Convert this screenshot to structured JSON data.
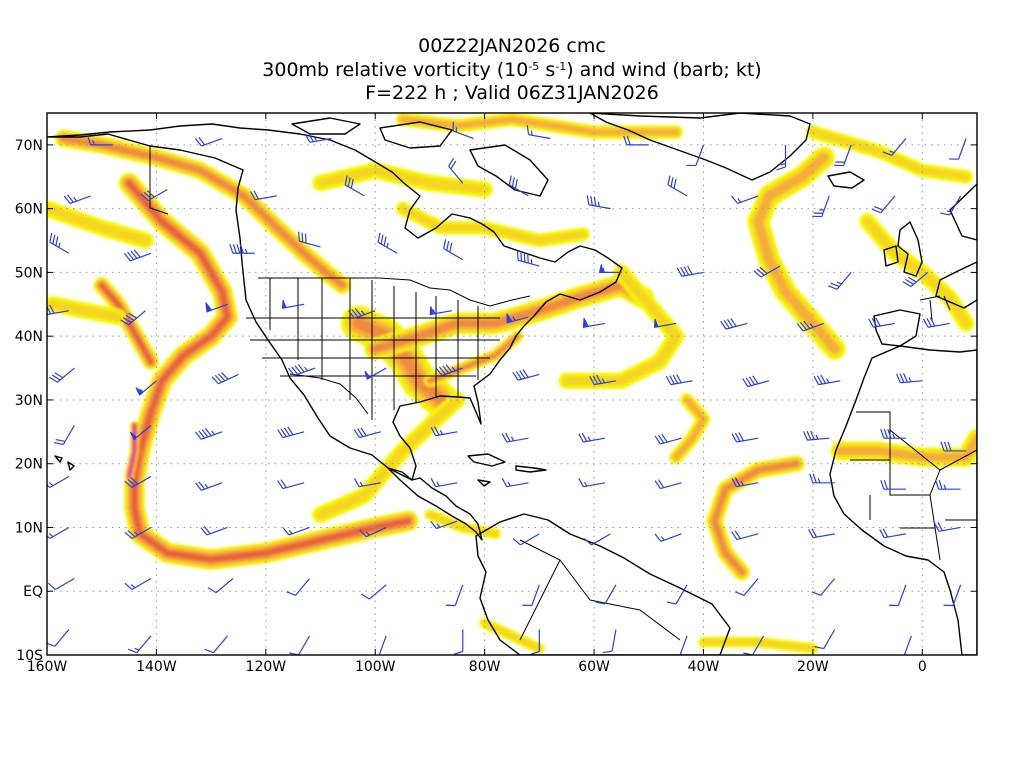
{
  "title": {
    "line1": "00Z22JAN2026 cmc",
    "line2_prefix": "300mb relative vorticity (10",
    "line2_exp1": "-5",
    "line2_mid": " s",
    "line2_exp2": "-1",
    "line2_suffix": ") and wind (barb; kt)",
    "line3": "F=222 h ; Valid 06Z31JAN2026"
  },
  "map": {
    "lon_range": [
      -160,
      10
    ],
    "lat_range": [
      -10,
      75
    ],
    "x_ticks": [
      {
        "lon": -160,
        "label": "160W"
      },
      {
        "lon": -140,
        "label": "140W"
      },
      {
        "lon": -120,
        "label": "120W"
      },
      {
        "lon": -100,
        "label": "100W"
      },
      {
        "lon": -80,
        "label": "80W"
      },
      {
        "lon": -60,
        "label": "60W"
      },
      {
        "lon": -40,
        "label": "40W"
      },
      {
        "lon": -20,
        "label": "20W"
      },
      {
        "lon": 0,
        "label": "0"
      }
    ],
    "y_ticks": [
      {
        "lat": 70,
        "label": "70N"
      },
      {
        "lat": 60,
        "label": "60N"
      },
      {
        "lat": 50,
        "label": "50N"
      },
      {
        "lat": 40,
        "label": "40N"
      },
      {
        "lat": 30,
        "label": "30N"
      },
      {
        "lat": 20,
        "label": "20N"
      },
      {
        "lat": 10,
        "label": "10N"
      },
      {
        "lat": 0,
        "label": "EQ"
      },
      {
        "lat": -10,
        "label": "10S"
      }
    ],
    "gridlines": "dotted",
    "vorticity_colors": [
      "#f5f500",
      "#f5d520",
      "#f5ac3a",
      "#f08a40",
      "#e8603a",
      "#d83a55",
      "#e040c8"
    ],
    "barb_color": "#2a3fe0"
  },
  "vorticity_features": [
    {
      "name": "alaska-arc",
      "pts": [
        [
          -157,
          71
        ],
        [
          -150,
          70
        ],
        [
          -140,
          68
        ],
        [
          -132,
          66
        ],
        [
          -124,
          62
        ],
        [
          -118,
          57
        ],
        [
          -113,
          53
        ],
        [
          -109,
          50
        ],
        [
          -106,
          48
        ]
      ],
      "w": 3.2,
      "max": 3
    },
    {
      "name": "west-coast-trough",
      "pts": [
        [
          -145,
          64
        ],
        [
          -139,
          58
        ],
        [
          -132,
          53
        ],
        [
          -128,
          47
        ],
        [
          -127,
          43
        ],
        [
          -130,
          40
        ],
        [
          -135,
          37
        ],
        [
          -139,
          33
        ],
        [
          -141,
          28
        ],
        [
          -143,
          22
        ],
        [
          -144,
          17
        ],
        [
          -144,
          13
        ],
        [
          -143,
          9
        ],
        [
          -138,
          6
        ],
        [
          -130,
          5
        ],
        [
          -120,
          6
        ],
        [
          -110,
          8
        ],
        [
          -100,
          10
        ],
        [
          -94,
          11
        ]
      ],
      "w": 3.8,
      "max": 4
    },
    {
      "name": "pacific-low",
      "pts": [
        [
          -150,
          48
        ],
        [
          -147,
          45
        ],
        [
          -145,
          42
        ],
        [
          -143,
          39
        ],
        [
          -141,
          36
        ]
      ],
      "w": 3.0,
      "max": 4
    },
    {
      "name": "pacific-max",
      "pts": [
        [
          -144,
          26
        ],
        [
          -144,
          22
        ],
        [
          -145,
          18
        ]
      ],
      "w": 1.6,
      "max": 6
    },
    {
      "name": "pacific-west",
      "pts": [
        [
          -159,
          45
        ],
        [
          -153,
          44
        ],
        [
          -147,
          43
        ]
      ],
      "w": 3,
      "max": 1
    },
    {
      "name": "aleutian",
      "pts": [
        [
          -160,
          60
        ],
        [
          -150,
          57
        ],
        [
          -142,
          55
        ]
      ],
      "w": 3,
      "max": 1
    },
    {
      "name": "central-us",
      "pts": [
        [
          -103,
          42
        ],
        [
          -98,
          40
        ],
        [
          -94,
          36
        ],
        [
          -92,
          33
        ],
        [
          -88,
          30
        ]
      ],
      "w": 6.5,
      "max": 3
    },
    {
      "name": "ohio-valley",
      "pts": [
        [
          -100,
          38
        ],
        [
          -92,
          40
        ],
        [
          -85,
          42
        ],
        [
          -78,
          42
        ],
        [
          -70,
          44
        ],
        [
          -63,
          46
        ],
        [
          -55,
          48
        ],
        [
          -51,
          46
        ]
      ],
      "w": 4,
      "max": 3
    },
    {
      "name": "east-coast",
      "pts": [
        [
          -90,
          33
        ],
        [
          -84,
          35
        ],
        [
          -78,
          37
        ],
        [
          -74,
          40
        ]
      ],
      "w": 2.2,
      "max": 3
    },
    {
      "name": "atlantic-front",
      "pts": [
        [
          -55,
          50
        ],
        [
          -50,
          45
        ],
        [
          -45,
          40
        ],
        [
          -48,
          36
        ],
        [
          -55,
          33
        ],
        [
          -65,
          33
        ]
      ],
      "w": 3,
      "max": 1
    },
    {
      "name": "gulf-mexico",
      "pts": [
        [
          -110,
          12
        ],
        [
          -102,
          15
        ],
        [
          -95,
          22
        ],
        [
          -90,
          26
        ],
        [
          -85,
          30
        ]
      ],
      "w": 3,
      "max": 1
    },
    {
      "name": "hudson",
      "pts": [
        [
          -95,
          60
        ],
        [
          -88,
          57
        ],
        [
          -80,
          57
        ],
        [
          -70,
          55
        ],
        [
          -62,
          56
        ]
      ],
      "w": 2.5,
      "max": 1
    },
    {
      "name": "canada-arctic",
      "pts": [
        [
          -110,
          64
        ],
        [
          -100,
          66
        ],
        [
          -90,
          64
        ],
        [
          -80,
          63
        ]
      ],
      "w": 3,
      "max": 1
    },
    {
      "name": "arctic-top",
      "pts": [
        [
          -95,
          74
        ],
        [
          -85,
          73
        ],
        [
          -75,
          74
        ],
        [
          -60,
          72
        ],
        [
          -45,
          72
        ]
      ],
      "w": 2.5,
      "max": 2
    },
    {
      "name": "greenland-east",
      "pts": [
        [
          -18,
          68
        ],
        [
          -22,
          65
        ],
        [
          -28,
          62
        ],
        [
          -30,
          58
        ],
        [
          -28,
          52
        ],
        [
          -25,
          47
        ],
        [
          -22,
          44
        ],
        [
          -20,
          42
        ],
        [
          -16,
          38
        ]
      ],
      "w": 4,
      "max": 2
    },
    {
      "name": "north-atlantic-east",
      "pts": [
        [
          -10,
          58
        ],
        [
          -5,
          53
        ],
        [
          0,
          50
        ],
        [
          5,
          46
        ],
        [
          8,
          42
        ]
      ],
      "w": 3,
      "max": 1
    },
    {
      "name": "norway",
      "pts": [
        [
          -20,
          72
        ],
        [
          -8,
          69
        ],
        [
          0,
          66
        ],
        [
          8,
          65
        ]
      ],
      "w": 2.5,
      "max": 1
    },
    {
      "name": "mid-atlantic-south",
      "pts": [
        [
          -43,
          30
        ],
        [
          -40,
          27
        ],
        [
          -42,
          24
        ],
        [
          -45,
          21
        ]
      ],
      "w": 2.5,
      "max": 2
    },
    {
      "name": "tropical-hook",
      "pts": [
        [
          -23,
          20
        ],
        [
          -30,
          19
        ],
        [
          -36,
          16
        ],
        [
          -38,
          11
        ],
        [
          -36,
          6
        ],
        [
          -33,
          3
        ]
      ],
      "w": 3,
      "max": 3
    },
    {
      "name": "africa",
      "pts": [
        [
          -15,
          22
        ],
        [
          -8,
          22
        ],
        [
          0,
          21
        ],
        [
          8,
          21
        ],
        [
          10,
          24
        ]
      ],
      "w": 3.5,
      "max": 2
    },
    {
      "name": "caribbean",
      "pts": [
        [
          -90,
          12
        ],
        [
          -84,
          10
        ],
        [
          -78,
          9
        ]
      ],
      "w": 2,
      "max": 1
    },
    {
      "name": "south-america",
      "pts": [
        [
          -80,
          -5
        ],
        [
          -75,
          -7
        ],
        [
          -70,
          -9
        ]
      ],
      "w": 2,
      "max": 1
    },
    {
      "name": "south-atlantic",
      "pts": [
        [
          -40,
          -8
        ],
        [
          -30,
          -8
        ],
        [
          -20,
          -9
        ]
      ],
      "w": 2,
      "max": 1
    }
  ],
  "barbs": [
    [
      -148,
      70,
      270,
      15
    ],
    [
      -128,
      71,
      250,
      20
    ],
    [
      -108,
      71,
      260,
      25
    ],
    [
      -82,
      71,
      290,
      15
    ],
    [
      -68,
      71,
      280,
      15
    ],
    [
      -50,
      70,
      270,
      20
    ],
    [
      -40,
      70,
      200,
      10
    ],
    [
      -25,
      70,
      180,
      15
    ],
    [
      -13,
      70,
      200,
      20
    ],
    [
      -3,
      71,
      220,
      15
    ],
    [
      8,
      71,
      200,
      10
    ],
    [
      -152,
      62,
      250,
      25
    ],
    [
      -138,
      63,
      240,
      30
    ],
    [
      -118,
      62,
      260,
      20
    ],
    [
      -102,
      62,
      300,
      30
    ],
    [
      -84,
      64,
      320,
      20
    ],
    [
      -72,
      62,
      300,
      30
    ],
    [
      -57,
      60,
      280,
      35
    ],
    [
      -43,
      62,
      300,
      30
    ],
    [
      -30,
      62,
      250,
      15
    ],
    [
      -17,
      62,
      200,
      25
    ],
    [
      -5,
      62,
      220,
      20
    ],
    [
      7,
      62,
      210,
      15
    ],
    [
      -156,
      53,
      300,
      35
    ],
    [
      -141,
      53,
      250,
      40
    ],
    [
      -122,
      53,
      270,
      45
    ],
    [
      -110,
      54,
      285,
      30
    ],
    [
      -96,
      53,
      300,
      35
    ],
    [
      -84,
      52,
      300,
      30
    ],
    [
      -70,
      51,
      285,
      45
    ],
    [
      -55,
      50,
      270,
      55
    ],
    [
      -40,
      50,
      260,
      40
    ],
    [
      -26,
      51,
      240,
      30
    ],
    [
      -13,
      50,
      220,
      25
    ],
    [
      1,
      50,
      230,
      30
    ],
    [
      -156,
      44,
      260,
      30
    ],
    [
      -142,
      44,
      230,
      40
    ],
    [
      -127,
      45,
      250,
      60
    ],
    [
      -113,
      45,
      260,
      50
    ],
    [
      -100,
      44,
      250,
      35
    ],
    [
      -86,
      44,
      260,
      55
    ],
    [
      -72,
      43,
      255,
      65
    ],
    [
      -58,
      42,
      260,
      60
    ],
    [
      -45,
      42,
      260,
      50
    ],
    [
      -32,
      42,
      255,
      40
    ],
    [
      -18,
      42,
      250,
      35
    ],
    [
      -5,
      42,
      260,
      30
    ],
    [
      5,
      42,
      260,
      30
    ],
    [
      -155,
      35,
      230,
      30
    ],
    [
      -140,
      33,
      230,
      55
    ],
    [
      -125,
      34,
      245,
      40
    ],
    [
      -111,
      35,
      250,
      45
    ],
    [
      -98,
      35,
      240,
      50
    ],
    [
      -84,
      35,
      250,
      45
    ],
    [
      -70,
      34,
      255,
      40
    ],
    [
      -56,
      33,
      260,
      35
    ],
    [
      -42,
      33,
      260,
      40
    ],
    [
      -28,
      33,
      255,
      40
    ],
    [
      -15,
      33,
      260,
      35
    ],
    [
      0,
      33,
      265,
      35
    ],
    [
      -155,
      26,
      210,
      20
    ],
    [
      -141,
      26,
      230,
      50
    ],
    [
      -128,
      25,
      250,
      45
    ],
    [
      -113,
      25,
      255,
      40
    ],
    [
      -99,
      25,
      255,
      30
    ],
    [
      -85,
      25,
      260,
      25
    ],
    [
      -72,
      24,
      260,
      25
    ],
    [
      -58,
      24,
      260,
      25
    ],
    [
      -44,
      24,
      255,
      30
    ],
    [
      -30,
      24,
      260,
      30
    ],
    [
      -17,
      24,
      265,
      35
    ],
    [
      -3,
      24,
      270,
      35
    ],
    [
      8,
      22,
      270,
      30
    ],
    [
      -156,
      18,
      240,
      15
    ],
    [
      -141,
      18,
      240,
      30
    ],
    [
      -128,
      17,
      250,
      25
    ],
    [
      -113,
      17,
      255,
      20
    ],
    [
      -99,
      17,
      260,
      15
    ],
    [
      -85,
      17,
      260,
      15
    ],
    [
      -72,
      17,
      260,
      15
    ],
    [
      -58,
      17,
      260,
      15
    ],
    [
      -44,
      17,
      255,
      20
    ],
    [
      -30,
      17,
      260,
      25
    ],
    [
      -16,
      17,
      270,
      25
    ],
    [
      -3,
      16,
      270,
      20
    ],
    [
      7,
      16,
      270,
      25
    ],
    [
      -156,
      10,
      240,
      15
    ],
    [
      -141,
      10,
      240,
      25
    ],
    [
      -127,
      10,
      250,
      20
    ],
    [
      -112,
      10,
      250,
      15
    ],
    [
      -98,
      10,
      245,
      15
    ],
    [
      -85,
      11,
      250,
      15
    ],
    [
      -70,
      9,
      240,
      10
    ],
    [
      -57,
      9,
      240,
      10
    ],
    [
      -44,
      9,
      250,
      15
    ],
    [
      -30,
      9,
      255,
      20
    ],
    [
      -16,
      9,
      260,
      20
    ],
    [
      -3,
      9,
      260,
      20
    ],
    [
      7,
      10,
      260,
      20
    ],
    [
      -155,
      2,
      240,
      10
    ],
    [
      -141,
      2,
      240,
      15
    ],
    [
      -126,
      2,
      230,
      10
    ],
    [
      -112,
      2,
      220,
      10
    ],
    [
      -98,
      1,
      230,
      10
    ],
    [
      -84,
      1,
      200,
      10
    ],
    [
      -70,
      1,
      200,
      10
    ],
    [
      -56,
      1,
      210,
      10
    ],
    [
      -43,
      1,
      210,
      10
    ],
    [
      -30,
      2,
      220,
      10
    ],
    [
      -16,
      2,
      220,
      10
    ],
    [
      -3,
      1,
      200,
      10
    ],
    [
      7,
      1,
      200,
      10
    ],
    [
      -156,
      -6,
      220,
      10
    ],
    [
      -141,
      -7,
      220,
      15
    ],
    [
      -127,
      -7,
      220,
      10
    ],
    [
      -112,
      -7,
      210,
      10
    ],
    [
      -98,
      -7,
      200,
      10
    ],
    [
      -84,
      -6,
      180,
      10
    ],
    [
      -70,
      -6,
      180,
      10
    ],
    [
      -56,
      -6,
      190,
      10
    ],
    [
      -43,
      -7,
      200,
      10
    ],
    [
      -29,
      -7,
      210,
      10
    ],
    [
      -16,
      -6,
      210,
      10
    ],
    [
      -2,
      -7,
      200,
      10
    ]
  ]
}
